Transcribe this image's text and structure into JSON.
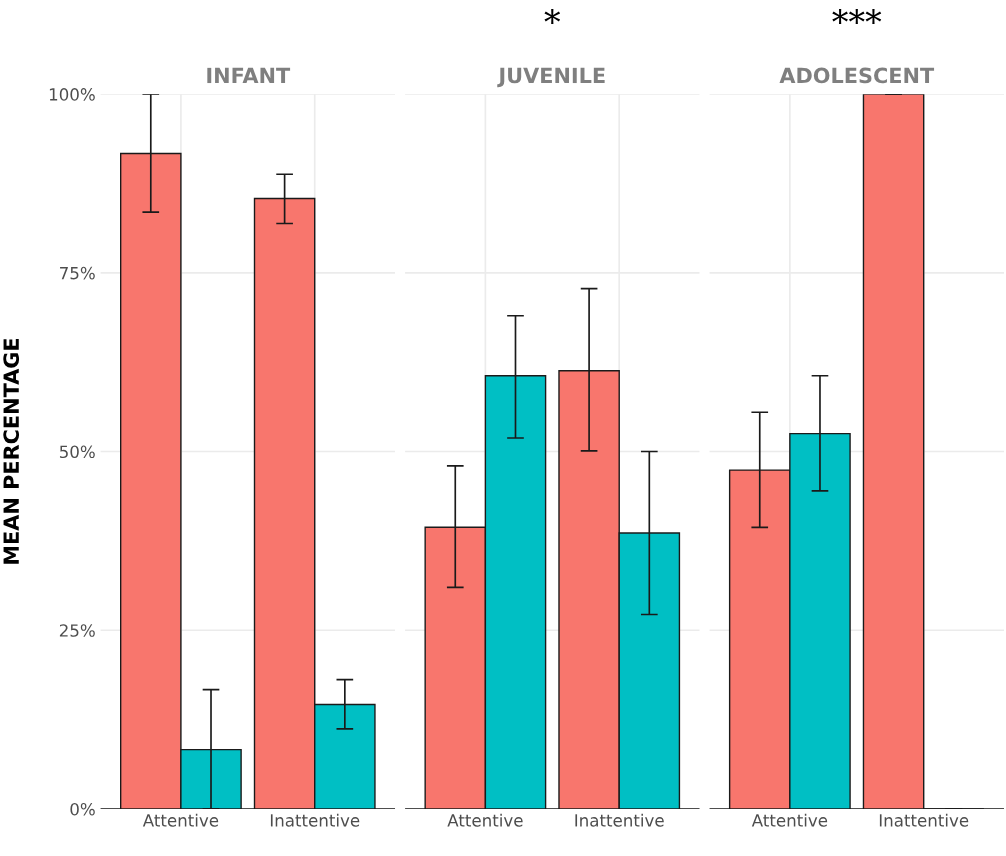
{
  "chart_data": [
    {
      "type": "bar",
      "title": "INFANT",
      "ylabel": "MEAN PERCENTAGE",
      "categories": [
        "Attentive",
        "Inattentive"
      ],
      "ylim": [
        0,
        100
      ],
      "yticks": [
        {
          "value": 0,
          "label": "0%"
        },
        {
          "value": 25,
          "label": "25%"
        },
        {
          "value": 50,
          "label": "50%"
        },
        {
          "value": 75,
          "label": "75%"
        },
        {
          "value": 100,
          "label": "100%"
        }
      ],
      "grid": true,
      "series": [
        {
          "color": "#f8766d",
          "values": [
            91.7,
            85.4
          ],
          "errors": [
            [
              83.5,
              100
            ],
            [
              81.9,
              88.8
            ]
          ]
        },
        {
          "color": "#00bfc4",
          "values": [
            8.3,
            14.6
          ],
          "errors": [
            [
              0,
              16.7
            ],
            [
              11.2,
              18.1
            ]
          ]
        }
      ]
    },
    {
      "type": "bar",
      "title": "JUVENILE",
      "annotations": [
        "*"
      ],
      "categories": [
        "Attentive",
        "Inattentive"
      ],
      "ylim": [
        0,
        100
      ],
      "yticks": [
        {
          "value": 0,
          "label": null
        },
        {
          "value": 25,
          "label": null
        },
        {
          "value": 50,
          "label": null
        },
        {
          "value": 75,
          "label": null
        },
        {
          "value": 100,
          "label": null
        }
      ],
      "grid": true,
      "tick_labels": "x",
      "series": [
        {
          "color": "#f8766d",
          "values": [
            39.4,
            61.3
          ],
          "errors": [
            [
              31.0,
              48.0
            ],
            [
              50.1,
              72.8
            ]
          ]
        },
        {
          "color": "#00bfc4",
          "values": [
            60.6,
            38.6
          ],
          "errors": [
            [
              51.9,
              69.0
            ],
            [
              27.2,
              50.0
            ]
          ]
        }
      ]
    },
    {
      "type": "bar",
      "title": "ADOLESCENT",
      "annotations": [
        "***"
      ],
      "categories": [
        "Attentive",
        "Inattentive"
      ],
      "ylim": [
        0,
        100
      ],
      "yticks": [
        {
          "value": 0,
          "label": null
        },
        {
          "value": 25,
          "label": null
        },
        {
          "value": 50,
          "label": null
        },
        {
          "value": 75,
          "label": null
        },
        {
          "value": 100,
          "label": null
        }
      ],
      "grid": true,
      "tick_labels": "x",
      "series": [
        {
          "color": "#f8766d",
          "values": [
            47.4,
            100
          ],
          "errors": [
            [
              39.4,
              55.5
            ],
            [
              100,
              100
            ]
          ]
        },
        {
          "color": "#00bfc4",
          "values": [
            52.5,
            0
          ],
          "errors": [
            [
              44.5,
              60.6
            ],
            [
              0,
              0
            ]
          ]
        }
      ]
    }
  ]
}
